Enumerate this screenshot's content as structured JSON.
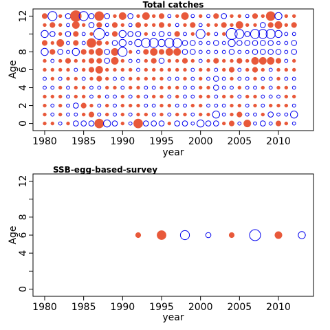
{
  "colors": {
    "residual_positive": "#E8593A",
    "residual_negative": "#0000EE",
    "frame": "#000000"
  },
  "chart_data": [
    {
      "type": "scatter",
      "subtype": "bubble-residuals",
      "title": "Total catches",
      "xlabel": "year",
      "ylabel": "Age",
      "x_ticks": [
        "1980",
        "1985",
        "1990",
        "1995",
        "2000",
        "2005",
        "2010"
      ],
      "y_ticks": [
        "0",
        "2",
        "4",
        "6",
        "8",
        "12"
      ],
      "xlim": [
        1978.5,
        2014.5
      ],
      "ylim": [
        -0.8,
        12.8
      ],
      "years": [
        1980,
        1981,
        1982,
        1983,
        1984,
        1985,
        1986,
        1987,
        1988,
        1989,
        1990,
        1991,
        1992,
        1993,
        1994,
        1995,
        1996,
        1997,
        1998,
        1999,
        2000,
        2001,
        2002,
        2003,
        2004,
        2005,
        2006,
        2007,
        2008,
        2009,
        2010,
        2011,
        2012
      ],
      "ages": [
        0,
        1,
        2,
        3,
        4,
        5,
        6,
        7,
        8,
        9,
        10,
        11,
        12
      ],
      "rows": [
        {
          "age": 12,
          "r": [
            2,
            -4,
            1,
            -2,
            5,
            -4,
            -2,
            4,
            -2,
            1,
            3,
            -2,
            1,
            3,
            1,
            2,
            -1,
            1,
            3,
            -1,
            1,
            -1,
            2,
            -2,
            1,
            1,
            -1,
            2,
            1,
            4,
            -3,
            1,
            1
          ]
        },
        {
          "age": 11,
          "r": [
            1,
            2,
            1,
            -1,
            3,
            1,
            -2,
            2,
            -1,
            2,
            1,
            -1,
            2,
            1,
            1,
            2,
            1,
            -1,
            1,
            2,
            -1,
            1,
            1,
            2,
            1,
            3,
            1,
            1,
            -2,
            2,
            3,
            1,
            2
          ]
        },
        {
          "age": 10,
          "r": [
            -3,
            -2,
            1,
            -2,
            2,
            -1,
            1,
            -5,
            -1,
            2,
            -3,
            -2,
            -2,
            1,
            -1,
            -2,
            -1,
            2,
            -1,
            1,
            -4,
            1,
            -1,
            1,
            -5,
            -4,
            -2,
            -4,
            -4,
            -4,
            -3,
            -1,
            -1
          ]
        },
        {
          "age": 9,
          "r": [
            2,
            1,
            3,
            -1,
            2,
            -1,
            4,
            2,
            1,
            -2,
            -3,
            -1,
            -3,
            -4,
            -4,
            -3,
            -4,
            -4,
            -2,
            -2,
            -1,
            -1,
            -2,
            -1,
            -3,
            -2,
            -2,
            -2,
            -2,
            -2,
            -1,
            -1,
            -2
          ]
        },
        {
          "age": 8,
          "r": [
            -3,
            2,
            -2,
            -1,
            -3,
            2,
            2,
            3,
            -2,
            3,
            -4,
            1,
            -1,
            2,
            3,
            2,
            3,
            3,
            -2,
            -2,
            -1,
            -1,
            -1,
            -1,
            -2,
            -1,
            -1,
            -2,
            -2,
            -2,
            -2,
            -1,
            -2
          ]
        },
        {
          "age": 7,
          "r": [
            1,
            -1,
            1,
            2,
            1,
            1,
            2,
            2,
            -2,
            3,
            1,
            -1,
            -1,
            1,
            2,
            -2,
            1,
            1,
            2,
            1,
            -1,
            1,
            2,
            1,
            1,
            2,
            1,
            3,
            3,
            3,
            2,
            -1,
            1
          ]
        },
        {
          "age": 6,
          "r": [
            1,
            1,
            1,
            1,
            -1,
            1,
            2,
            3,
            1,
            1,
            1,
            1,
            -1,
            1,
            1,
            1,
            1,
            1,
            1,
            -1,
            1,
            1,
            -1,
            1,
            2,
            -1,
            1,
            2,
            1,
            -1,
            1,
            1,
            1
          ]
        },
        {
          "age": 5,
          "r": [
            -1,
            1,
            -1,
            1,
            1,
            -1,
            1,
            2,
            1,
            -1,
            -1,
            1,
            1,
            1,
            1,
            1,
            -1,
            -1,
            1,
            -1,
            1,
            -1,
            -2,
            -1,
            1,
            -1,
            -1,
            1,
            -1,
            -1,
            1,
            -1,
            -1
          ]
        },
        {
          "age": 4,
          "r": [
            -1,
            -1,
            1,
            -1,
            1,
            1,
            -1,
            -1,
            1,
            1,
            -1,
            1,
            1,
            -1,
            -1,
            1,
            1,
            1,
            -1,
            -1,
            1,
            1,
            -2,
            -1,
            -1,
            1,
            -1,
            -1,
            1,
            -1,
            1,
            1,
            -1
          ]
        },
        {
          "age": 3,
          "r": [
            1,
            1,
            1,
            -1,
            1,
            1,
            -1,
            1,
            -1,
            -1,
            1,
            -1,
            1,
            -1,
            1,
            1,
            -1,
            1,
            -1,
            -1,
            1,
            1,
            -1,
            1,
            1,
            -1,
            1,
            1,
            -1,
            -1,
            -1,
            1,
            1
          ]
        },
        {
          "age": 2,
          "r": [
            1,
            -1,
            1,
            -1,
            -2,
            2,
            1,
            -1,
            1,
            -1,
            1,
            1,
            1,
            -1,
            -1,
            1,
            1,
            -1,
            -1,
            1,
            1,
            -1,
            -1,
            -1,
            1,
            1,
            -1,
            1,
            -1,
            1,
            1,
            1,
            -1
          ]
        },
        {
          "age": 1,
          "r": [
            1,
            -1,
            1,
            -1,
            -1,
            1,
            2,
            -1,
            1,
            -1,
            1,
            -1,
            1,
            1,
            -1,
            1,
            -1,
            1,
            1,
            -1,
            1,
            1,
            -3,
            -1,
            1,
            2,
            -1,
            -1,
            1,
            -2,
            -1,
            -1,
            -3
          ]
        },
        {
          "age": 0,
          "r": [
            1,
            1,
            -1,
            1,
            -2,
            -2,
            -2,
            4,
            -3,
            -2,
            1,
            -1,
            4,
            -2,
            -2,
            -2,
            1,
            -2,
            -2,
            -1,
            -3,
            -2,
            -2,
            1,
            2,
            -1,
            3,
            -1,
            -2,
            -1,
            2,
            1,
            -1
          ]
        }
      ]
    },
    {
      "type": "scatter",
      "subtype": "bubble-residuals",
      "title": "SSB-egg-based-survey",
      "xlabel": "year",
      "ylabel": "Age",
      "x_ticks": [
        "1980",
        "1985",
        "1990",
        "1995",
        "2000",
        "2005",
        "2010"
      ],
      "y_ticks": [
        "0",
        "4",
        "6",
        "8",
        "12"
      ],
      "xlim": [
        1978.5,
        2014.5
      ],
      "ylim": [
        -0.8,
        12.8
      ],
      "points": [
        {
          "year": 1992,
          "age": 6,
          "r": 2
        },
        {
          "year": 1995,
          "age": 6,
          "r": 4
        },
        {
          "year": 1998,
          "age": 6,
          "r": -4
        },
        {
          "year": 2001,
          "age": 6,
          "r": -2
        },
        {
          "year": 2004,
          "age": 6,
          "r": 2
        },
        {
          "year": 2007,
          "age": 6,
          "r": -5
        },
        {
          "year": 2010,
          "age": 6,
          "r": 3
        },
        {
          "year": 2013,
          "age": 6,
          "r": -3
        }
      ]
    }
  ]
}
